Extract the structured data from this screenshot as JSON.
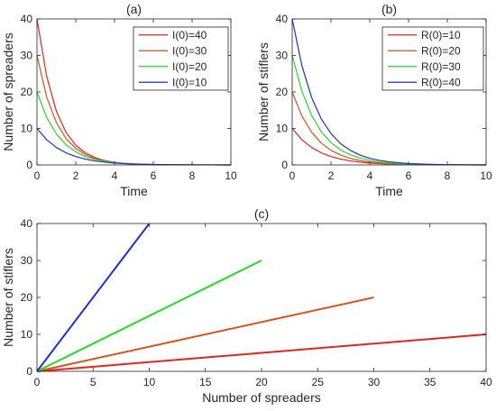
{
  "chart_data": [
    {
      "type": "line",
      "title": "(a)",
      "xlabel": "Time",
      "ylabel": "Number of spreaders",
      "xlim": [
        0,
        10
      ],
      "ylim": [
        0,
        40
      ],
      "xticks": [
        0,
        2,
        4,
        6,
        8,
        10
      ],
      "yticks": [
        0,
        10,
        20,
        30,
        40
      ],
      "legend_position": "top-right",
      "x": [
        0,
        0.5,
        1,
        1.5,
        2,
        2.5,
        3,
        3.5,
        4,
        4.5,
        5,
        6,
        7,
        8,
        9,
        10
      ],
      "series": [
        {
          "name": "I(0)=40",
          "color": "#e8231f",
          "values": [
            40,
            24.3,
            14.7,
            8.9,
            5.4,
            3.3,
            2.0,
            1.2,
            0.73,
            0.44,
            0.27,
            0.1,
            0.04,
            0.01,
            0.01,
            0
          ]
        },
        {
          "name": "I(0)=30",
          "color": "#d95319",
          "values": [
            30,
            18.6,
            11.6,
            7.2,
            4.5,
            2.8,
            1.7,
            1.1,
            0.67,
            0.42,
            0.26,
            0.1,
            0.04,
            0.02,
            0.01,
            0
          ]
        },
        {
          "name": "I(0)=20",
          "color": "#22dd22",
          "values": [
            20,
            13.0,
            8.5,
            5.5,
            3.6,
            2.3,
            1.5,
            1.0,
            0.64,
            0.42,
            0.27,
            0.11,
            0.05,
            0.02,
            0.01,
            0
          ]
        },
        {
          "name": "I(0)=10",
          "color": "#1f2fd6",
          "values": [
            10,
            6.9,
            4.8,
            3.3,
            2.3,
            1.6,
            1.1,
            0.76,
            0.52,
            0.36,
            0.25,
            0.12,
            0.06,
            0.03,
            0.01,
            0
          ]
        }
      ]
    },
    {
      "type": "line",
      "title": "(b)",
      "xlabel": "Time",
      "ylabel": "Number of stiflers",
      "xlim": [
        0,
        10
      ],
      "ylim": [
        0,
        40
      ],
      "xticks": [
        0,
        2,
        4,
        6,
        8,
        10
      ],
      "yticks": [
        0,
        10,
        20,
        30,
        40
      ],
      "legend_position": "top-right",
      "x": [
        0,
        0.5,
        1,
        1.5,
        2,
        2.5,
        3,
        3.5,
        4,
        4.5,
        5,
        6,
        7,
        8,
        9,
        10
      ],
      "series": [
        {
          "name": "R(0)=10",
          "color": "#e8231f",
          "values": [
            10,
            6.9,
            4.8,
            3.3,
            2.3,
            1.6,
            1.1,
            0.76,
            0.52,
            0.36,
            0.25,
            0.12,
            0.06,
            0.03,
            0.01,
            0
          ]
        },
        {
          "name": "R(0)=20",
          "color": "#d95319",
          "values": [
            20,
            13.4,
            9.0,
            6.0,
            4.0,
            2.7,
            1.8,
            1.2,
            0.81,
            0.54,
            0.36,
            0.16,
            0.07,
            0.03,
            0.01,
            0
          ]
        },
        {
          "name": "R(0)=30",
          "color": "#22dd22",
          "values": [
            30,
            20.2,
            13.6,
            9.1,
            6.1,
            4.1,
            2.8,
            1.9,
            1.25,
            0.84,
            0.56,
            0.25,
            0.11,
            0.05,
            0.02,
            0
          ]
        },
        {
          "name": "R(0)=40",
          "color": "#1f2fd6",
          "values": [
            40,
            27.2,
            18.5,
            12.6,
            8.6,
            5.8,
            4.0,
            2.7,
            1.8,
            1.25,
            0.85,
            0.39,
            0.18,
            0.08,
            0.04,
            0
          ]
        }
      ]
    },
    {
      "type": "line",
      "title": "(c)",
      "xlabel": "Number of spreaders",
      "ylabel": "Number of stiflers",
      "xlim": [
        0,
        40
      ],
      "ylim": [
        0,
        40
      ],
      "xticks": [
        0,
        5,
        10,
        15,
        20,
        25,
        30,
        35,
        40
      ],
      "yticks": [
        0,
        10,
        20,
        30,
        40
      ],
      "series": [
        {
          "color": "#e8231f",
          "x": [
            0,
            40
          ],
          "values": [
            0,
            10
          ]
        },
        {
          "color": "#d95319",
          "x": [
            0,
            30
          ],
          "values": [
            0,
            20
          ]
        },
        {
          "color": "#22dd22",
          "x": [
            0,
            20
          ],
          "values": [
            0,
            30
          ]
        },
        {
          "color": "#1f2fd6",
          "x": [
            0,
            10
          ],
          "values": [
            0,
            40
          ]
        }
      ]
    }
  ]
}
